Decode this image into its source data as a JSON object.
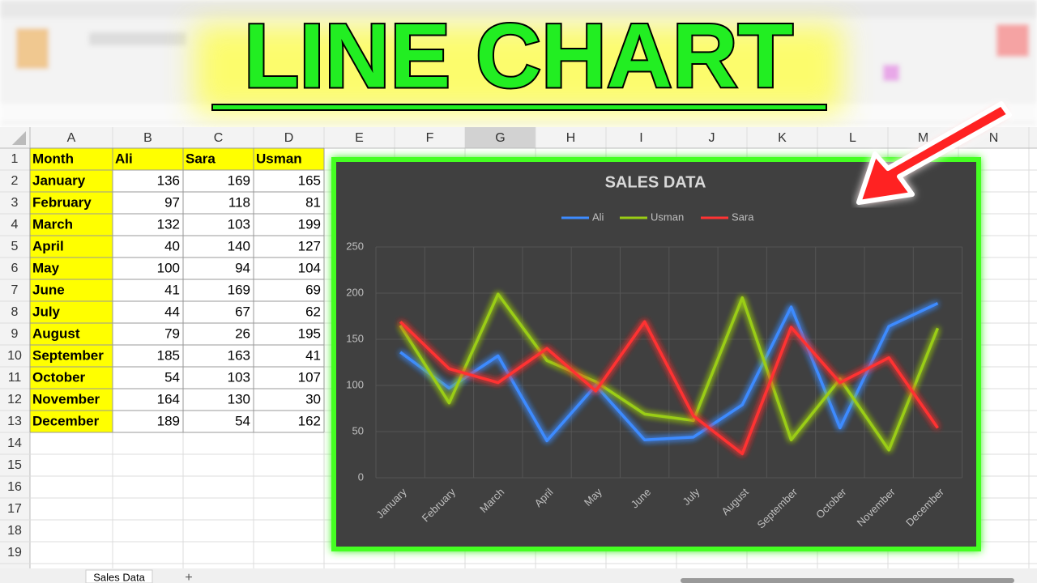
{
  "banner": {
    "title": "LINE CHART"
  },
  "sheet": {
    "columns": [
      "A",
      "B",
      "C",
      "D",
      "E",
      "F",
      "G",
      "H",
      "I",
      "J",
      "K",
      "L",
      "M",
      "N"
    ],
    "row_numbers": [
      1,
      2,
      3,
      4,
      5,
      6,
      7,
      8,
      9,
      10,
      11,
      12,
      13,
      14,
      15,
      16,
      17,
      18,
      19
    ],
    "rows": [
      [
        "Month",
        "Ali",
        "Sara",
        "Usman"
      ],
      [
        "January",
        136,
        169,
        165
      ],
      [
        "February",
        97,
        118,
        81
      ],
      [
        "March",
        132,
        103,
        199
      ],
      [
        "April",
        40,
        140,
        127
      ],
      [
        "May",
        100,
        94,
        104
      ],
      [
        "June",
        41,
        169,
        69
      ],
      [
        "July",
        44,
        67,
        62
      ],
      [
        "August",
        79,
        26,
        195
      ],
      [
        "September",
        185,
        163,
        41
      ],
      [
        "October",
        54,
        103,
        107
      ],
      [
        "November",
        164,
        130,
        30
      ],
      [
        "December",
        189,
        54,
        162
      ]
    ],
    "tab": "Sales Data",
    "add_tab": "+"
  },
  "chart_data": {
    "type": "line",
    "title": "SALES DATA",
    "categories": [
      "January",
      "February",
      "March",
      "April",
      "May",
      "June",
      "July",
      "August",
      "September",
      "October",
      "November",
      "December"
    ],
    "series": [
      {
        "name": "Ali",
        "color": "#3d8bff",
        "values": [
          136,
          97,
          132,
          40,
          100,
          41,
          44,
          79,
          185,
          54,
          164,
          189
        ]
      },
      {
        "name": "Usman",
        "color": "#9acd14",
        "values": [
          165,
          81,
          199,
          127,
          104,
          69,
          62,
          195,
          41,
          107,
          30,
          162
        ]
      },
      {
        "name": "Sara",
        "color": "#ff3333",
        "values": [
          169,
          118,
          103,
          140,
          94,
          169,
          67,
          26,
          163,
          103,
          130,
          54
        ]
      }
    ],
    "ylim": [
      0,
      250
    ],
    "yticks": [
      0,
      50,
      100,
      150,
      200,
      250
    ],
    "grid": true,
    "legend": "top"
  }
}
